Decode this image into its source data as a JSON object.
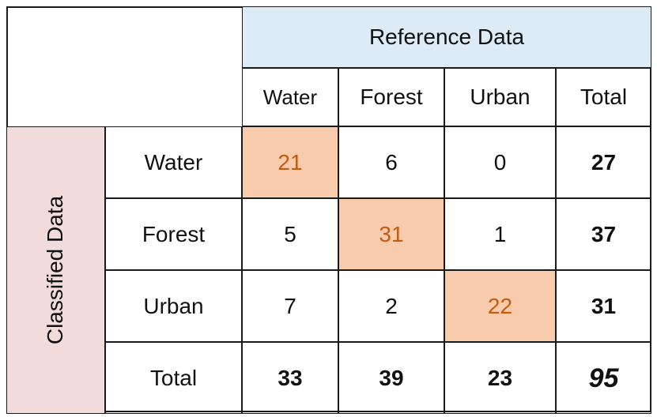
{
  "table": {
    "reference_label": "Reference Data",
    "classified_label": "Classified Data",
    "columns": [
      "Water",
      "Forest",
      "Urban",
      "Total"
    ],
    "rows": [
      {
        "label": "Water",
        "values": [
          "21",
          "6",
          "0"
        ],
        "total": "27"
      },
      {
        "label": "Forest",
        "values": [
          "5",
          "31",
          "1"
        ],
        "total": "37"
      },
      {
        "label": "Urban",
        "values": [
          "7",
          "2",
          "22"
        ],
        "total": "31"
      }
    ],
    "total_row": {
      "label": "Total",
      "values": [
        "33",
        "39",
        "23"
      ],
      "grand_total": "95"
    },
    "colors": {
      "reference_header_bg": "#ddebf7",
      "classified_header_bg": "#f2dcdb",
      "diagonal_bg": "#f8cbad",
      "diagonal_text": "#c55a11",
      "border": "#1a1a1a"
    }
  }
}
